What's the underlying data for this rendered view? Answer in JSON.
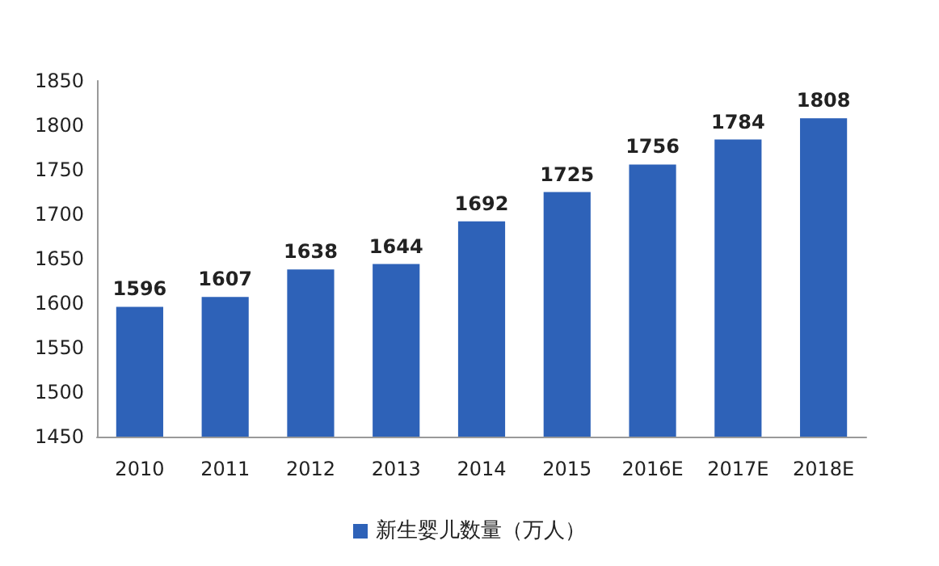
{
  "chart_data": {
    "type": "bar",
    "categories": [
      "2010",
      "2011",
      "2012",
      "2013",
      "2014",
      "2015",
      "2016E",
      "2017E",
      "2018E"
    ],
    "series": [
      {
        "name": "新生婴儿数量（万人）",
        "color": "#2e62b8",
        "values": [
          1596,
          1607,
          1638,
          1644,
          1692,
          1725,
          1756,
          1784,
          1808
        ]
      }
    ],
    "ylim": [
      1450,
      1850
    ],
    "yticks": [
      1450,
      1500,
      1550,
      1600,
      1650,
      1700,
      1750,
      1800,
      1850
    ],
    "data_labels": true,
    "grid": false,
    "legend": "bottom"
  }
}
